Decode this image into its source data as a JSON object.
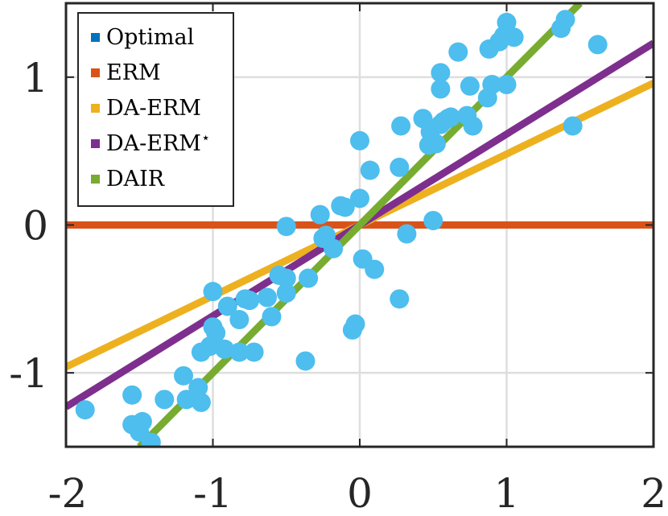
{
  "chart_data": {
    "type": "scatter",
    "xlim": [
      -2,
      2
    ],
    "ylim": [
      -1.5,
      1.5
    ],
    "xticks": [
      -2,
      -1,
      0,
      1,
      2
    ],
    "xtick_labels": [
      "-2",
      "-1",
      "0",
      "1",
      "2"
    ],
    "yticks": [
      -1,
      0,
      1
    ],
    "ytick_labels": [
      "-1",
      "0",
      "1"
    ],
    "grid": true,
    "legend_position": "top-left",
    "scatter": {
      "name": "data",
      "color": "#4DBEEE",
      "points": [
        [
          -1.87,
          -1.25
        ],
        [
          -1.55,
          -1.15
        ],
        [
          -1.55,
          -1.35
        ],
        [
          -1.5,
          -1.4
        ],
        [
          -1.48,
          -1.33
        ],
        [
          -1.42,
          -1.47
        ],
        [
          -1.33,
          -1.18
        ],
        [
          -1.2,
          -1.02
        ],
        [
          -1.18,
          -1.18
        ],
        [
          -1.1,
          -1.1
        ],
        [
          -1.08,
          -1.2
        ],
        [
          -1.08,
          -0.86
        ],
        [
          -1.02,
          -0.82
        ],
        [
          -1.0,
          -0.69
        ],
        [
          -1.0,
          -0.45
        ],
        [
          -0.98,
          -0.73
        ],
        [
          -0.92,
          -0.84
        ],
        [
          -0.9,
          -0.55
        ],
        [
          -0.82,
          -0.64
        ],
        [
          -0.82,
          -0.86
        ],
        [
          -0.78,
          -0.5
        ],
        [
          -0.75,
          -0.51
        ],
        [
          -0.72,
          -0.86
        ],
        [
          -0.63,
          -0.49
        ],
        [
          -0.6,
          -0.62
        ],
        [
          -0.55,
          -0.34
        ],
        [
          -0.5,
          -0.46
        ],
        [
          -0.5,
          -0.36
        ],
        [
          -0.5,
          -0.01
        ],
        [
          -0.37,
          -0.92
        ],
        [
          -0.35,
          -0.36
        ],
        [
          -0.27,
          0.07
        ],
        [
          -0.25,
          -0.09
        ],
        [
          -0.23,
          -0.07
        ],
        [
          -0.18,
          -0.16
        ],
        [
          -0.13,
          0.13
        ],
        [
          -0.1,
          0.12
        ],
        [
          -0.05,
          -0.71
        ],
        [
          -0.03,
          -0.67
        ],
        [
          0.0,
          0.57
        ],
        [
          0.0,
          0.18
        ],
        [
          0.02,
          -0.23
        ],
        [
          0.07,
          0.37
        ],
        [
          0.1,
          -0.3
        ],
        [
          0.27,
          0.39
        ],
        [
          0.27,
          -0.5
        ],
        [
          0.28,
          0.67
        ],
        [
          0.32,
          -0.06
        ],
        [
          0.43,
          0.72
        ],
        [
          0.47,
          0.54
        ],
        [
          0.48,
          0.63
        ],
        [
          0.5,
          0.03
        ],
        [
          0.52,
          0.55
        ],
        [
          0.55,
          0.68
        ],
        [
          0.55,
          0.92
        ],
        [
          0.55,
          1.03
        ],
        [
          0.57,
          0.7
        ],
        [
          0.6,
          0.72
        ],
        [
          0.62,
          0.73
        ],
        [
          0.67,
          1.17
        ],
        [
          0.73,
          0.74
        ],
        [
          0.75,
          0.94
        ],
        [
          0.77,
          0.67
        ],
        [
          0.87,
          0.86
        ],
        [
          0.88,
          1.19
        ],
        [
          0.9,
          0.95
        ],
        [
          0.95,
          1.24
        ],
        [
          0.98,
          1.28
        ],
        [
          1.0,
          0.95
        ],
        [
          1.0,
          1.37
        ],
        [
          1.05,
          1.27
        ],
        [
          1.37,
          1.33
        ],
        [
          1.4,
          1.39
        ],
        [
          1.45,
          0.67
        ],
        [
          1.62,
          1.22
        ]
      ]
    },
    "series": [
      {
        "name": "Optimal",
        "type": "line",
        "color": "#0072BD",
        "slope": 1.0,
        "intercept": 0,
        "x_range": [
          -1.5,
          1.5
        ],
        "visible": false
      },
      {
        "name": "ERM",
        "type": "line",
        "color": "#D95319",
        "slope": 0.0,
        "intercept": 0,
        "x_range": [
          -2,
          2
        ],
        "visible": true
      },
      {
        "name": "DA-ERM",
        "type": "line",
        "color": "#EDB120",
        "slope": 0.48,
        "intercept": 0,
        "x_range": [
          -2,
          2
        ],
        "visible": true
      },
      {
        "name": "DA-ERM",
        "superscript": "⋆",
        "type": "line",
        "color": "#7E2F8E",
        "slope": 0.615,
        "intercept": 0,
        "x_range": [
          -2,
          2
        ],
        "visible": true
      },
      {
        "name": "DAIR",
        "type": "line",
        "color": "#77AC30",
        "slope": 1.0,
        "intercept": 0,
        "x_range": [
          -1.5,
          1.5
        ],
        "visible": true
      }
    ]
  }
}
